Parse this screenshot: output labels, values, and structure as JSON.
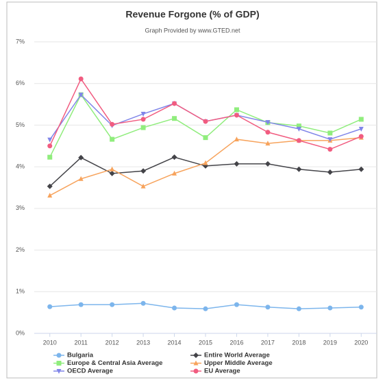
{
  "chart_data": {
    "type": "line",
    "title": "Revenue Forgone (% of GDP)",
    "subtitle": "Graph Provided by www.GTED.net",
    "categories": [
      "2010",
      "2011",
      "2012",
      "2013",
      "2014",
      "2015",
      "2016",
      "2017",
      "2018",
      "2019",
      "2020"
    ],
    "series": [
      {
        "name": "Bulgaria",
        "color": "#7cb5ec",
        "marker": "circle",
        "values": [
          0.64,
          0.69,
          0.69,
          0.72,
          0.61,
          0.59,
          0.69,
          0.63,
          0.59,
          0.61,
          0.63
        ]
      },
      {
        "name": "Entire World Average",
        "color": "#434348",
        "marker": "diamond",
        "values": [
          3.53,
          4.22,
          3.84,
          3.9,
          4.23,
          4.02,
          4.07,
          4.07,
          3.94,
          3.87,
          3.94
        ]
      },
      {
        "name": "Europe & Central Asia Average",
        "color": "#90ed7d",
        "marker": "square",
        "values": [
          4.23,
          5.73,
          4.66,
          4.94,
          5.16,
          4.7,
          5.37,
          5.06,
          4.98,
          4.81,
          5.14
        ]
      },
      {
        "name": "Upper Middle Average",
        "color": "#f7a35c",
        "marker": "triangle",
        "values": [
          3.31,
          3.71,
          3.94,
          3.53,
          3.84,
          4.09,
          4.66,
          4.56,
          4.63,
          4.63,
          4.7
        ]
      },
      {
        "name": "OECD Average",
        "color": "#8085e9",
        "marker": "triangle-down",
        "values": [
          4.65,
          5.73,
          4.99,
          5.27,
          5.52,
          5.09,
          5.24,
          5.07,
          4.91,
          4.66,
          4.91
        ]
      },
      {
        "name": "EU Average",
        "color": "#f15c80",
        "marker": "circle",
        "values": [
          4.5,
          6.11,
          5.02,
          5.14,
          5.52,
          5.09,
          5.24,
          4.83,
          4.63,
          4.42,
          4.73
        ]
      }
    ],
    "ylim": [
      0,
      7
    ],
    "yticks": [
      {
        "value": 0,
        "label": "0%"
      },
      {
        "value": 1,
        "label": "1%"
      },
      {
        "value": 2,
        "label": "2%"
      },
      {
        "value": 3,
        "label": "3%"
      },
      {
        "value": 4,
        "label": "4%"
      },
      {
        "value": 5,
        "label": "5%"
      },
      {
        "value": 6,
        "label": "6%"
      },
      {
        "value": 7,
        "label": "7%"
      }
    ],
    "grid": true,
    "legend": "bottom"
  }
}
